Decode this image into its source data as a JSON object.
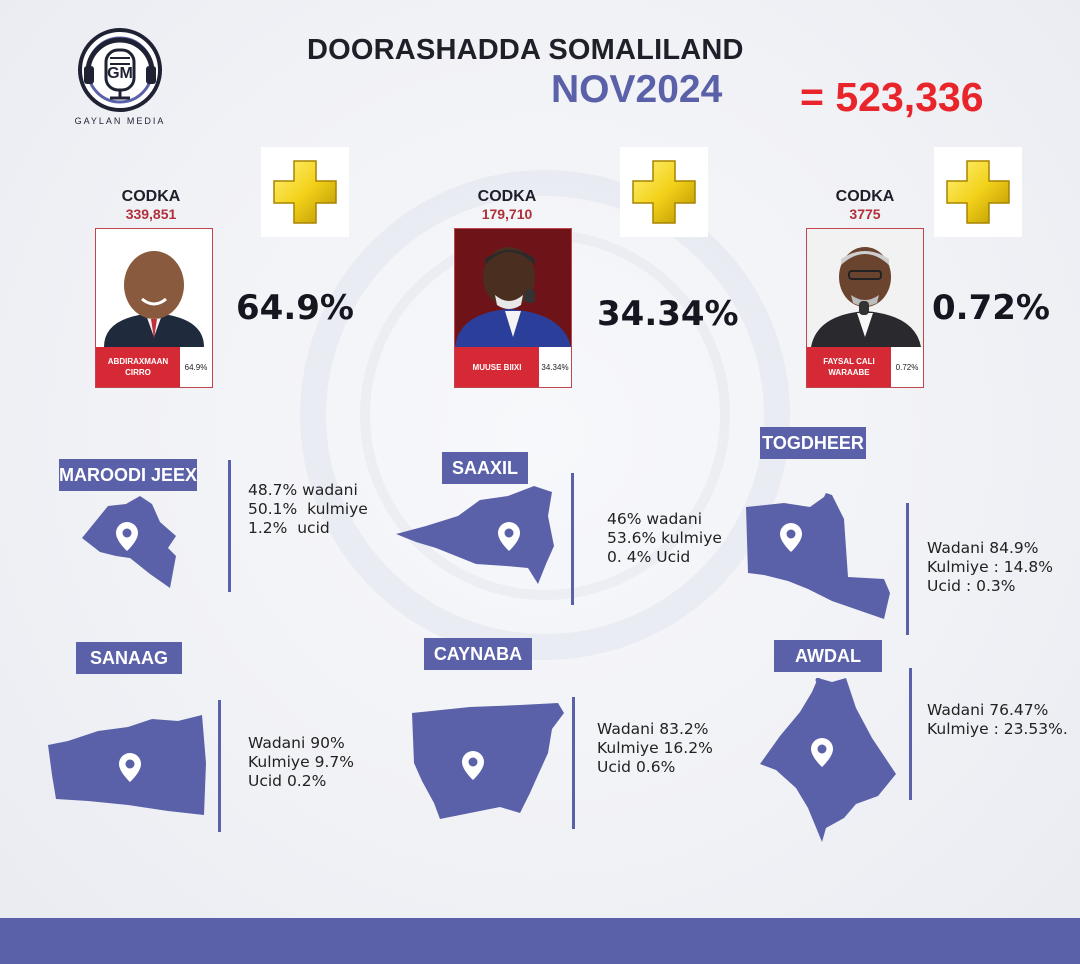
{
  "header": {
    "title": "DOORASHADDA SOMALILAND",
    "subtitle": "NOV2024",
    "total": "= 523,336",
    "logo_text": "GAYLAN MEDIA",
    "logo_initials": "GM"
  },
  "colors": {
    "accent": "#5a61a8",
    "total_red": "#e8252b",
    "votes_red": "#b0303a",
    "name_bar_red": "#d52a35",
    "plus_gold": "#f3d21a"
  },
  "candidates": [
    {
      "label": "CODKA",
      "votes": "339,851",
      "name_line1": "ABDIRAXMAAN",
      "name_line2": "CIRRO",
      "badge_pct": "64.9%",
      "big_pct": "64.9%",
      "icon": "plus-icon"
    },
    {
      "label": "CODKA",
      "votes": "179,710",
      "name_line1": "MUUSE BIIXI",
      "name_line2": "",
      "badge_pct": "34.34%",
      "big_pct": "34.34%",
      "icon": "plus-icon"
    },
    {
      "label": "CODKA",
      "votes": "3775",
      "name_line1": "FAYSAL CALI",
      "name_line2": "WARAABE",
      "badge_pct": "0.72%",
      "big_pct": "0.72%",
      "icon": "plus-icon"
    }
  ],
  "regions": [
    {
      "name": "MAROODI JEEX",
      "lines": [
        "48.7% wadani",
        "50.1%  kulmiye",
        "1.2%  ucid"
      ],
      "icon": "location-pin-icon"
    },
    {
      "name": "SAAXIL",
      "lines": [
        "46% wadani",
        "53.6% kulmiye",
        "0. 4% Ucid"
      ],
      "icon": "location-pin-icon"
    },
    {
      "name": "TOGDHEER",
      "lines": [
        "Wadani 84.9%",
        "Kulmiye : 14.8%",
        "Ucid : 0.3%"
      ],
      "icon": "location-pin-icon"
    },
    {
      "name": "SANAAG",
      "lines": [
        "Wadani 90%",
        "Kulmiye 9.7%",
        "Ucid 0.2%"
      ],
      "icon": "location-pin-icon"
    },
    {
      "name": "CAYNABA",
      "lines": [
        "Wadani 83.2%",
        "Kulmiye 16.2%",
        "Ucid 0.6%"
      ],
      "icon": "location-pin-icon"
    },
    {
      "name": "AWDAL",
      "lines": [
        "Wadani 76.47%",
        "Kulmiye : 23.53%."
      ],
      "icon": "location-pin-icon"
    }
  ]
}
